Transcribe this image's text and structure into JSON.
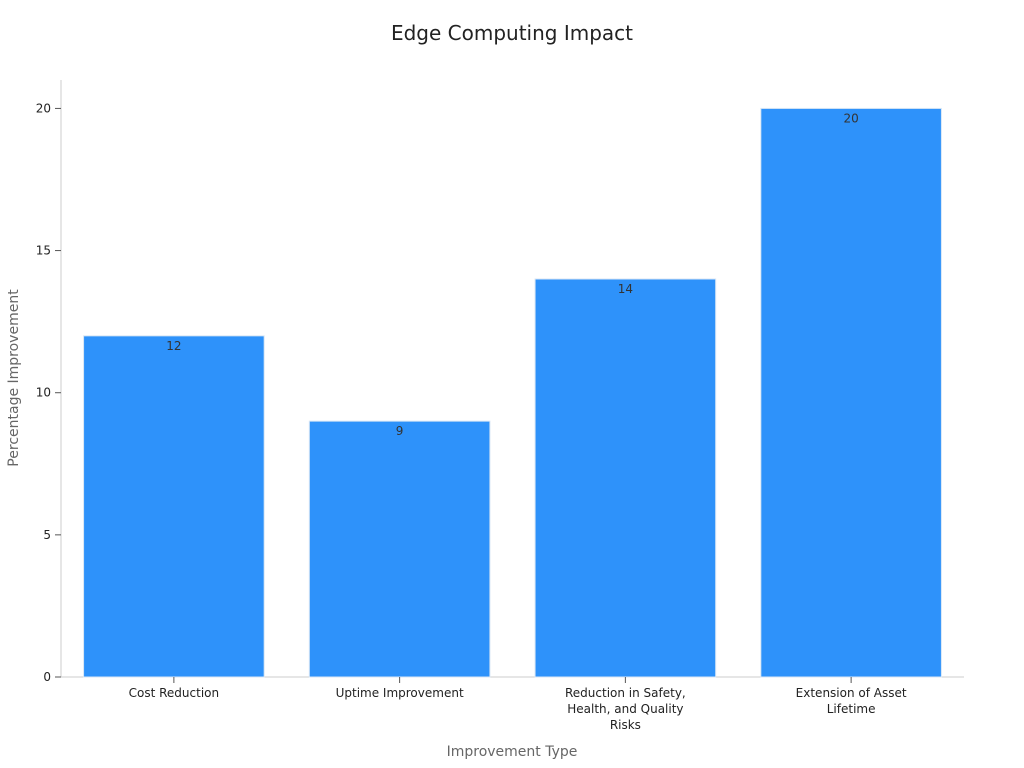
{
  "chart_data": {
    "type": "bar",
    "title": "Edge Computing Impact",
    "xlabel": "Improvement Type",
    "ylabel": "Percentage Improvement",
    "categories": [
      "Cost Reduction",
      "Uptime Improvement",
      "Reduction in Safety, Health, and Quality Risks",
      "Extension of Asset Lifetime"
    ],
    "values": [
      12,
      9,
      14,
      20
    ],
    "data_labels": [
      "12",
      "9",
      "14",
      "20"
    ],
    "yticks": [
      0,
      5,
      10,
      15,
      20
    ],
    "ytick_labels": [
      "0",
      "5",
      "10",
      "15",
      "20"
    ],
    "ylim": [
      0,
      21
    ],
    "grid": false,
    "legend": "none",
    "bar_color": "#2e92fa",
    "bar_edge_color": "#d8e6f5"
  }
}
